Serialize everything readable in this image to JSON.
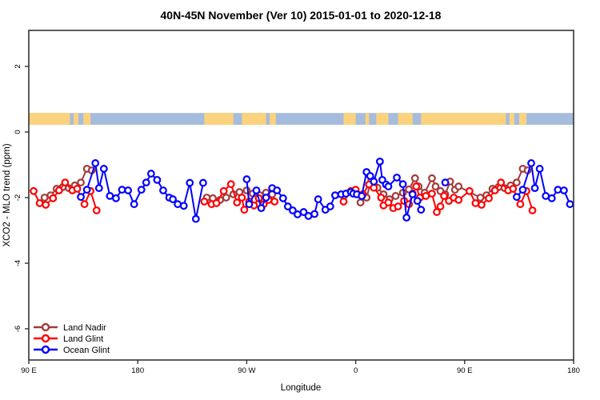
{
  "title": "40N-45N November (Ver 10)   2015-01-01 to 2020-12-18",
  "chart_data": {
    "type": "line",
    "marker": "open-circle",
    "xlabel": "Longitude",
    "ylabel": "XCO2 - MLO trend (ppm)",
    "x_axis": {
      "note": "x is degrees east of 90E; axis wraps the globe over 450 degrees",
      "tick_offsets_deg": [
        0,
        90,
        180,
        270,
        360,
        450
      ],
      "tick_labels": [
        "90 E",
        "180",
        "90 W",
        "0",
        "90 E",
        "180"
      ],
      "range_deg": [
        0,
        450
      ]
    },
    "y_axis": {
      "ticks": [
        2,
        0,
        -2,
        -4,
        -6
      ],
      "tick_labels": [
        "2",
        "0",
        "-2",
        "-4",
        "-6"
      ],
      "range": [
        -6.95,
        3.1
      ]
    },
    "grid": false,
    "box_color": "#333333",
    "land_ocean_band": {
      "description": "land/ocean mask strip along longitude",
      "value_top": 0.58,
      "value_bottom": 0.22,
      "ocean_color": "#A6BCDC",
      "land_color": "#FBD27D",
      "land_segments_deg": [
        [
          0,
          34
        ],
        [
          37,
          41
        ],
        [
          45,
          51
        ],
        [
          145,
          169
        ],
        [
          176,
          196
        ],
        [
          199,
          204
        ],
        [
          260,
          270
        ],
        [
          278,
          281
        ],
        [
          287,
          297
        ],
        [
          305,
          317
        ],
        [
          324,
          394
        ],
        [
          397,
          401
        ],
        [
          405,
          411
        ]
      ]
    },
    "legend": {
      "position": "bottom-left",
      "entries": [
        "Land Nadir",
        "Land Glint",
        "Ocean Glint"
      ]
    },
    "series": [
      {
        "name": "Land Nadir",
        "color": "#A23B3B",
        "points": [
          [
            13,
            -2.0
          ],
          [
            18,
            -1.93
          ],
          [
            23,
            -1.73
          ],
          [
            28,
            -1.68
          ],
          [
            33,
            -1.71
          ],
          [
            38,
            -1.63
          ],
          [
            43,
            -1.54
          ],
          [
            48,
            -1.12
          ],
          [
            52,
            -1.17
          ],
          [
            147,
            -2.0
          ],
          [
            152,
            -2.02
          ],
          [
            158,
            -2.07
          ],
          [
            163,
            -2.0
          ],
          [
            169,
            -1.9
          ],
          [
            174,
            -1.83
          ],
          [
            180,
            -1.78
          ],
          [
            185,
            -1.88
          ],
          [
            191,
            -1.93
          ],
          [
            196,
            -1.85
          ],
          [
            201,
            -1.9
          ],
          [
            274,
            -2.15
          ],
          [
            279,
            -2.0
          ],
          [
            283,
            -1.46
          ],
          [
            288,
            -1.7
          ],
          [
            293,
            -1.9
          ],
          [
            298,
            -2.05
          ],
          [
            303,
            -1.95
          ],
          [
            309,
            -1.85
          ],
          [
            314,
            -1.75
          ],
          [
            319,
            -1.41
          ],
          [
            322,
            -1.66
          ],
          [
            327,
            -1.85
          ],
          [
            333,
            -1.41
          ],
          [
            336,
            -1.66
          ],
          [
            340,
            -1.8
          ],
          [
            344,
            -1.9
          ],
          [
            348,
            -1.51
          ],
          [
            352,
            -1.76
          ],
          [
            355,
            -1.66
          ],
          [
            373,
            -2.0
          ],
          [
            378,
            -1.93
          ],
          [
            383,
            -1.73
          ],
          [
            388,
            -1.68
          ],
          [
            393,
            -1.71
          ],
          [
            398,
            -1.63
          ],
          [
            403,
            -1.54
          ],
          [
            408,
            -1.12
          ],
          [
            412,
            -1.17
          ]
        ]
      },
      {
        "name": "Land Glint",
        "color": "#FF0000",
        "points": [
          [
            4,
            -1.8
          ],
          [
            9,
            -2.17
          ],
          [
            14,
            -2.22
          ],
          [
            20,
            -2.02
          ],
          [
            25,
            -1.78
          ],
          [
            30,
            -1.54
          ],
          [
            36,
            -1.78
          ],
          [
            40,
            -1.73
          ],
          [
            46,
            -2.2
          ],
          [
            51,
            -1.8
          ],
          [
            56,
            -2.39
          ],
          [
            145,
            -2.12
          ],
          [
            151,
            -2.2
          ],
          [
            155,
            -2.17
          ],
          [
            161,
            -1.8
          ],
          [
            167,
            -1.59
          ],
          [
            172,
            -2.15
          ],
          [
            176,
            -2.0
          ],
          [
            178,
            -2.37
          ],
          [
            182,
            -2.12
          ],
          [
            186,
            -2.24
          ],
          [
            190,
            -2.02
          ],
          [
            194,
            -2.2
          ],
          [
            198,
            -2.07
          ],
          [
            203,
            -2.12
          ],
          [
            260,
            -2.12
          ],
          [
            266,
            -1.8
          ],
          [
            270,
            -1.76
          ],
          [
            276,
            -1.9
          ],
          [
            281,
            -1.6
          ],
          [
            285,
            -1.7
          ],
          [
            291,
            -2.0
          ],
          [
            293,
            -2.24
          ],
          [
            297,
            -2.15
          ],
          [
            301,
            -2.32
          ],
          [
            305,
            -2.27
          ],
          [
            310,
            -2.1
          ],
          [
            314,
            -2.2
          ],
          [
            317,
            -1.88
          ],
          [
            320,
            -1.66
          ],
          [
            323,
            -2.0
          ],
          [
            328,
            -1.95
          ],
          [
            333,
            -1.88
          ],
          [
            337,
            -2.44
          ],
          [
            340,
            -2.27
          ],
          [
            343,
            -1.95
          ],
          [
            347,
            -2.1
          ],
          [
            351,
            -2.0
          ],
          [
            355,
            -2.07
          ],
          [
            364,
            -1.8
          ],
          [
            369,
            -2.17
          ],
          [
            374,
            -2.22
          ],
          [
            380,
            -2.02
          ],
          [
            385,
            -1.78
          ],
          [
            390,
            -1.54
          ],
          [
            396,
            -1.78
          ],
          [
            400,
            -1.73
          ],
          [
            406,
            -2.2
          ],
          [
            411,
            -1.8
          ],
          [
            416,
            -2.39
          ]
        ]
      },
      {
        "name": "Ocean Glint",
        "color": "#0000FF",
        "points": [
          [
            43,
            -1.98
          ],
          [
            48,
            -1.76
          ],
          [
            55,
            -0.95
          ],
          [
            58,
            -1.71
          ],
          [
            62,
            -1.12
          ],
          [
            67,
            -1.95
          ],
          [
            72,
            -2.02
          ],
          [
            77,
            -1.76
          ],
          [
            82,
            -1.78
          ],
          [
            87,
            -2.2
          ],
          [
            93,
            -1.76
          ],
          [
            97,
            -1.54
          ],
          [
            101,
            -1.27
          ],
          [
            106,
            -1.46
          ],
          [
            111,
            -1.78
          ],
          [
            116,
            -2.0
          ],
          [
            119,
            -2.05
          ],
          [
            123,
            -2.2
          ],
          [
            128,
            -2.25
          ],
          [
            133,
            -1.55
          ],
          [
            138,
            -2.65
          ],
          [
            144,
            -1.55
          ],
          [
            180,
            -1.44
          ],
          [
            182,
            -2.2
          ],
          [
            188,
            -1.78
          ],
          [
            192,
            -2.32
          ],
          [
            196,
            -2.0
          ],
          [
            201,
            -1.71
          ],
          [
            205,
            -1.78
          ],
          [
            210,
            -2.02
          ],
          [
            214,
            -2.27
          ],
          [
            218,
            -2.39
          ],
          [
            222,
            -2.51
          ],
          [
            227,
            -2.44
          ],
          [
            231,
            -2.56
          ],
          [
            236,
            -2.5
          ],
          [
            239,
            -2.05
          ],
          [
            245,
            -2.37
          ],
          [
            249,
            -2.27
          ],
          [
            253,
            -1.93
          ],
          [
            258,
            -1.9
          ],
          [
            262,
            -1.88
          ],
          [
            266,
            -1.83
          ],
          [
            268,
            -1.88
          ],
          [
            271,
            -1.9
          ],
          [
            275,
            -1.95
          ],
          [
            279,
            -1.22
          ],
          [
            282,
            -1.34
          ],
          [
            285,
            -1.51
          ],
          [
            290,
            -0.9
          ],
          [
            292,
            -1.46
          ],
          [
            295,
            -1.6
          ],
          [
            297,
            -1.66
          ],
          [
            304,
            -1.39
          ],
          [
            309,
            -1.59
          ],
          [
            312,
            -2.61
          ],
          [
            317,
            -1.9
          ],
          [
            321,
            -2.1
          ],
          [
            324,
            -2.37
          ],
          [
            344,
            -1.54
          ],
          [
            403,
            -1.98
          ],
          [
            408,
            -1.76
          ],
          [
            415,
            -0.95
          ],
          [
            418,
            -1.71
          ],
          [
            422,
            -1.12
          ],
          [
            427,
            -1.95
          ],
          [
            432,
            -2.02
          ],
          [
            437,
            -1.76
          ],
          [
            442,
            -1.78
          ],
          [
            447,
            -2.2
          ]
        ]
      }
    ]
  }
}
